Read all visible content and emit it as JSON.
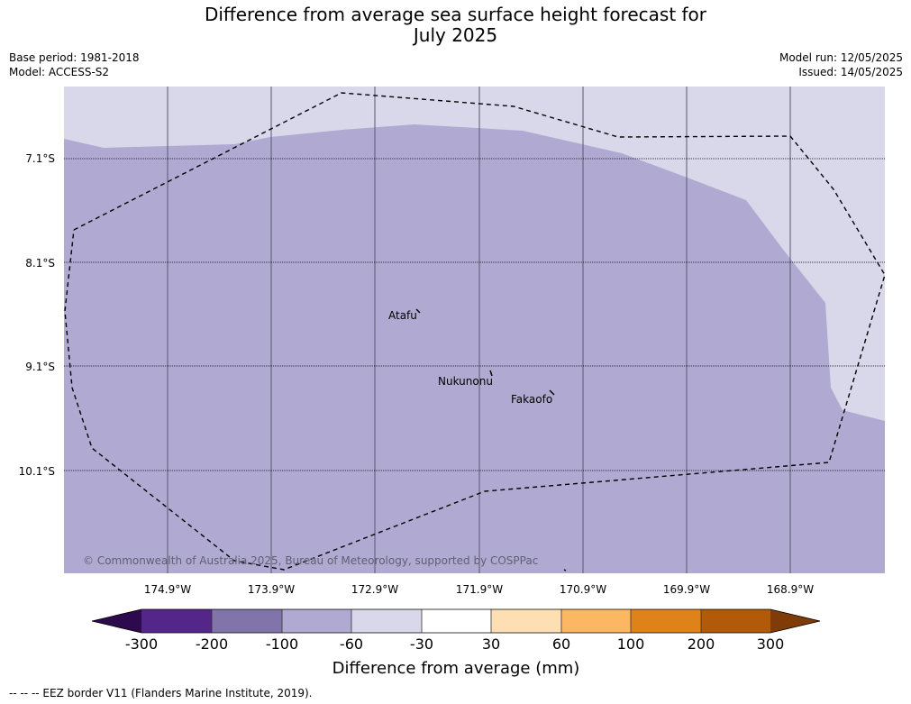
{
  "title": {
    "line1": "Difference from average sea surface height forecast for",
    "line2": "July 2025"
  },
  "meta": {
    "base_period": "Base period: 1981-2018",
    "model": "Model: ACCESS-S2",
    "model_run": "Model run: 12/05/2025",
    "issued": "Issued: 14/05/2025"
  },
  "map": {
    "lat_labels": [
      "7.1°S",
      "8.1°S",
      "9.1°S",
      "10.1°S"
    ],
    "lon_labels": [
      "174.9°W",
      "173.9°W",
      "172.9°W",
      "171.9°W",
      "170.9°W",
      "169.9°W",
      "168.9°W"
    ],
    "places": {
      "atafu": "Atafu",
      "nukunonu": "Nukunonu",
      "fakaofo": "Fakaofo"
    },
    "copyright": "© Commonwealth of Australia 2025, Bureau of Meteorology, supported by COSPPac",
    "colors": {
      "class_minus100_to_minus60": "#b0aad2",
      "class_minus60_to_minus30": "#d8d8ea"
    }
  },
  "legend": {
    "title": "Difference from average (mm)",
    "ticks": [
      "-300",
      "-200",
      "-100",
      "-60",
      "-30",
      "30",
      "60",
      "100",
      "200",
      "300"
    ],
    "colors": {
      "below_min": "#2d0a4e",
      "c1": "#542689",
      "c2": "#8074ab",
      "c3": "#b0aad2",
      "c4": "#d8d8ea",
      "c5": "#ffffff",
      "c6": "#fedfb3",
      "c7": "#fcb762",
      "c8": "#e0821a",
      "c9": "#b15a07",
      "above_max": "#7f3b08"
    }
  },
  "footnote": "-- -- -- EEZ border V11 (Flanders Marine Institute, 2019)."
}
